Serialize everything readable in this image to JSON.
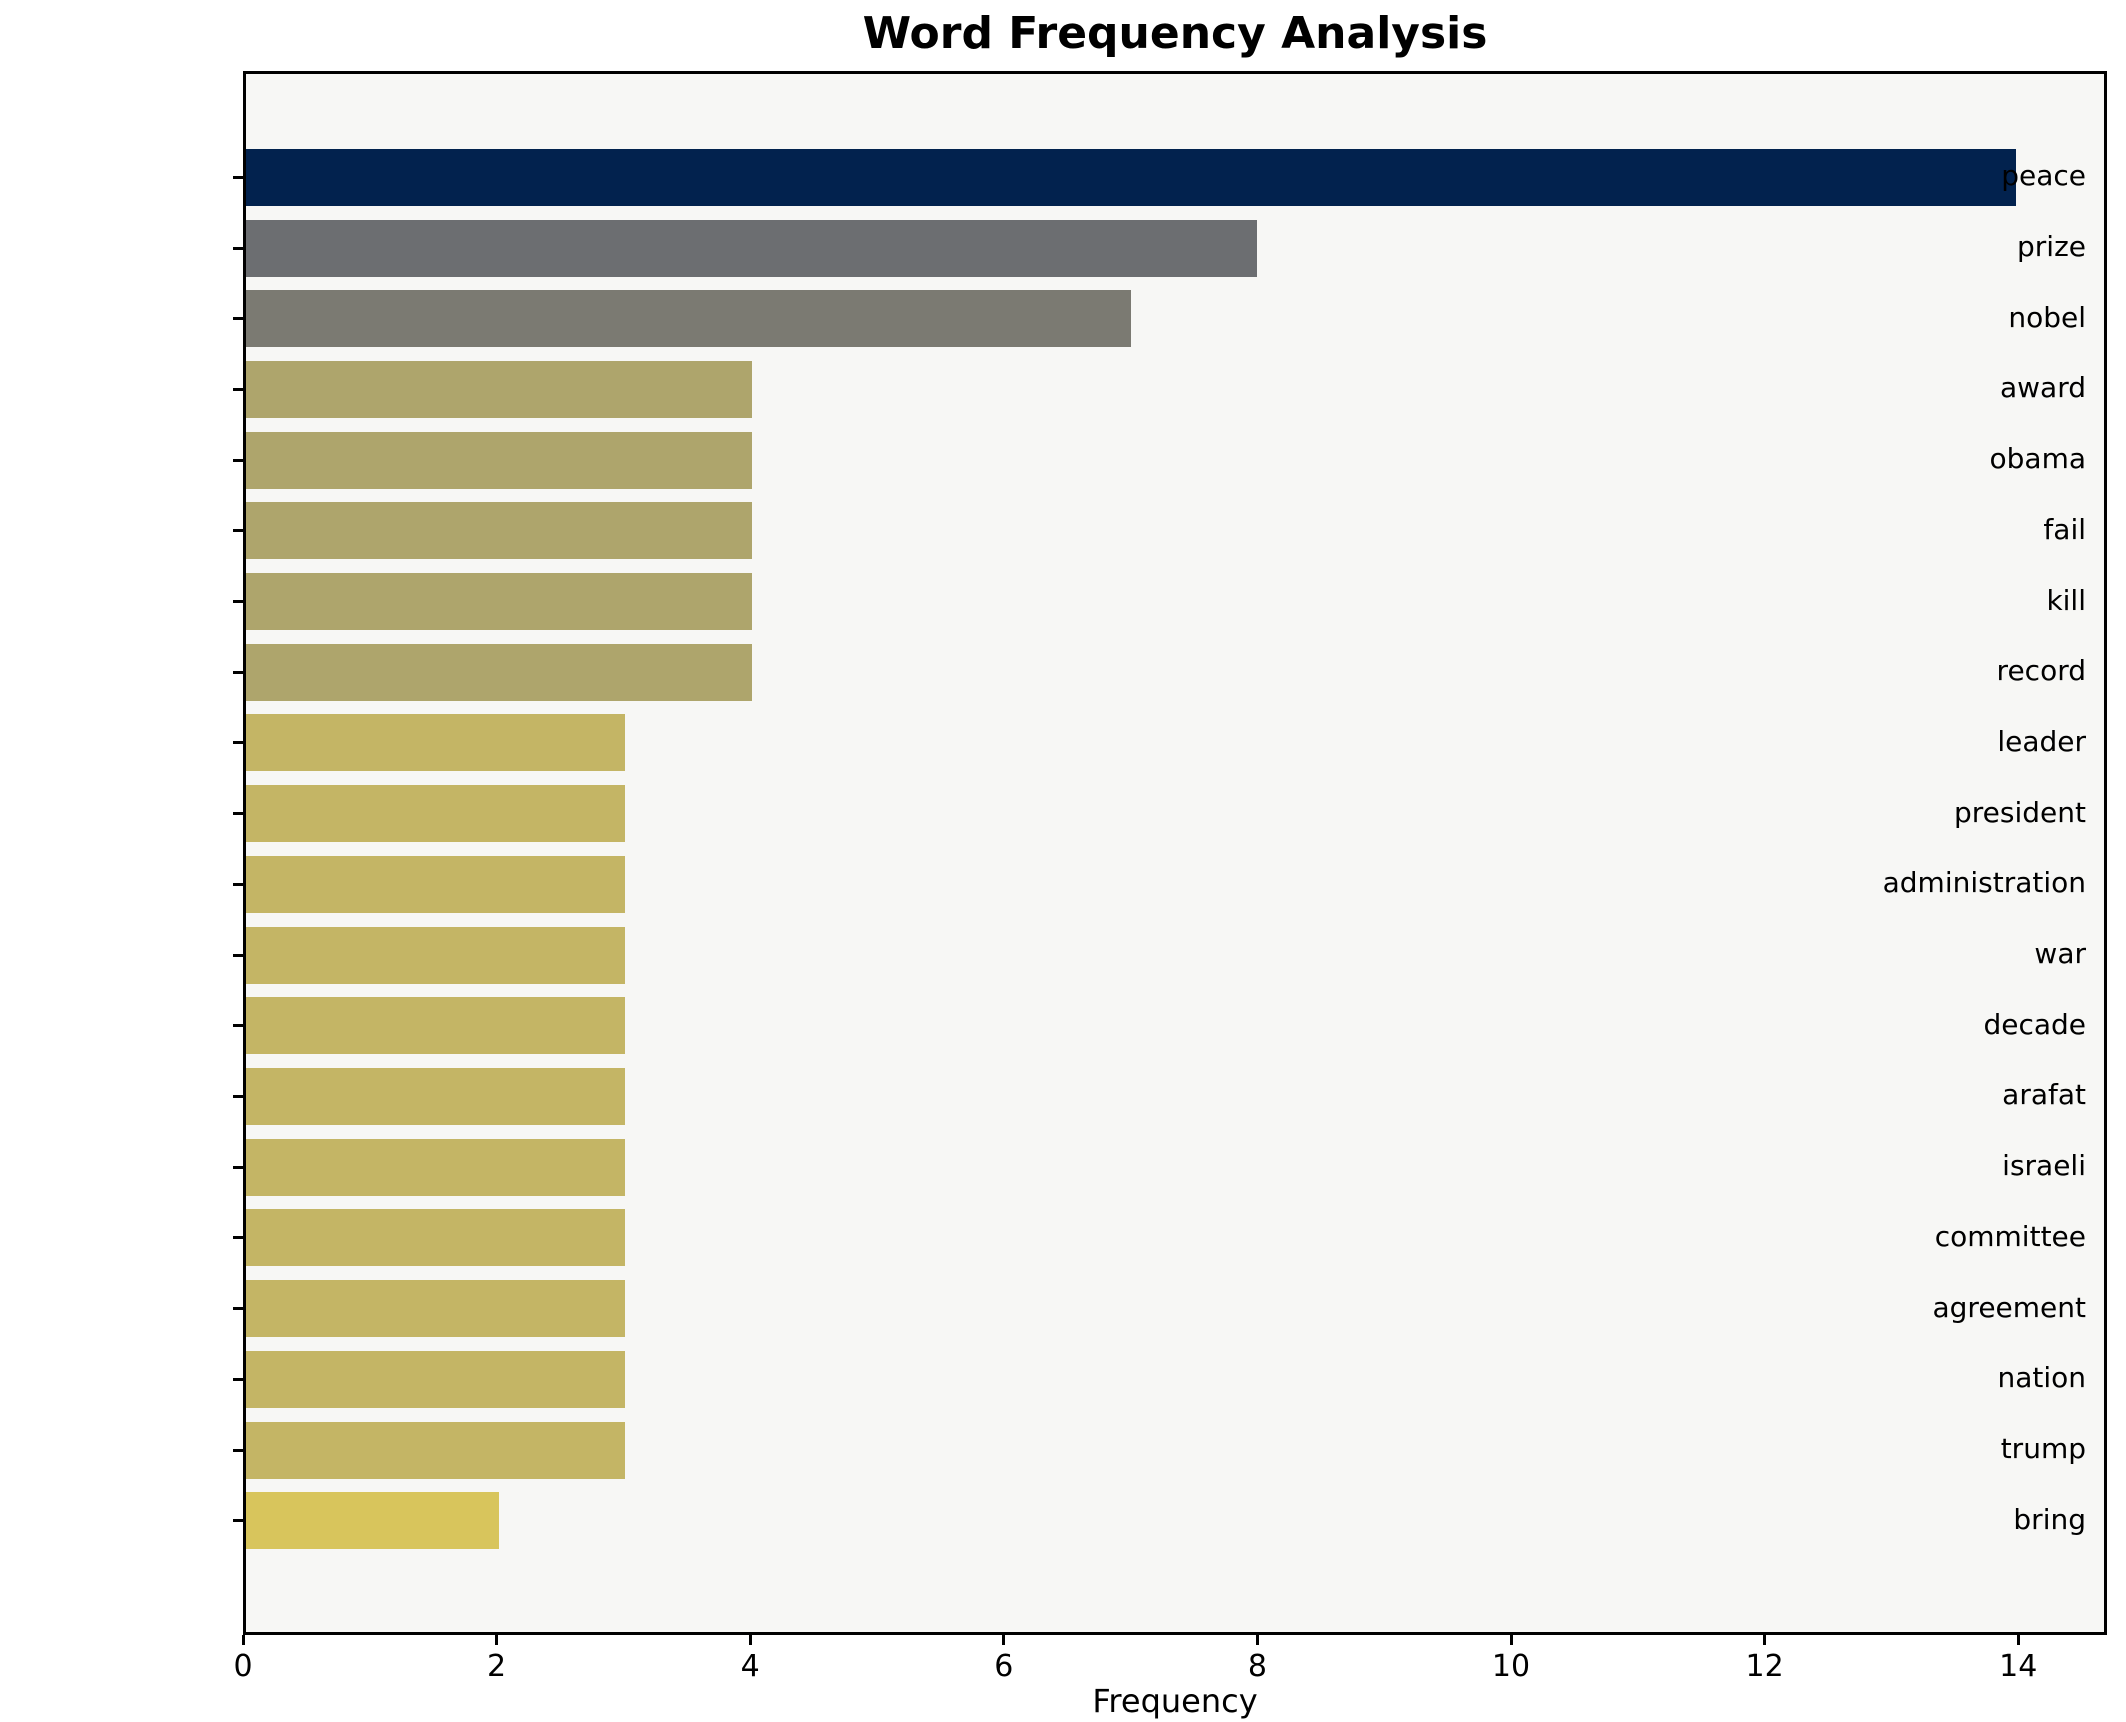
{
  "chart_data": {
    "type": "bar",
    "orientation": "horizontal",
    "title": "Word Frequency Analysis",
    "xlabel": "Frequency",
    "ylabel": "",
    "categories": [
      "peace",
      "prize",
      "nobel",
      "award",
      "obama",
      "fail",
      "kill",
      "record",
      "leader",
      "president",
      "administration",
      "war",
      "decade",
      "arafat",
      "israeli",
      "committee",
      "agreement",
      "nation",
      "trump",
      "bring"
    ],
    "values": [
      14,
      8,
      7,
      4,
      4,
      4,
      4,
      4,
      3,
      3,
      3,
      3,
      3,
      3,
      3,
      3,
      3,
      3,
      3,
      2
    ],
    "bar_colors": [
      "#02224E",
      "#6C6E71",
      "#7B7A72",
      "#AEA56C",
      "#AEA56C",
      "#AEA56C",
      "#AEA56C",
      "#AEA56C",
      "#C4B565",
      "#C4B565",
      "#C4B565",
      "#C4B565",
      "#C4B565",
      "#C4B565",
      "#C4B565",
      "#C4B565",
      "#C4B565",
      "#C4B565",
      "#C4B565",
      "#D8C55C"
    ],
    "xticks": [
      0,
      2,
      4,
      6,
      8,
      10,
      12,
      14
    ],
    "xlim": [
      0,
      14.7
    ],
    "grid": false,
    "legend": null,
    "colors": {
      "plot_background": "#F7F7F5",
      "figure_background": "#FFFFFF",
      "spine": "#000000",
      "text": "#000000"
    }
  }
}
